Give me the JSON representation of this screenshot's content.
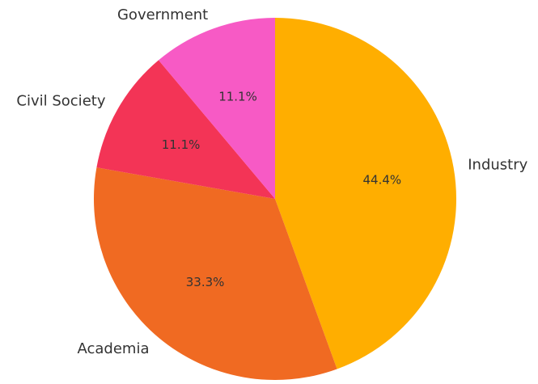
{
  "chart_data": {
    "type": "pie",
    "title": "",
    "categories": [
      "Industry",
      "Academia",
      "Civil Society",
      "Government"
    ],
    "values": [
      44.4,
      33.3,
      11.1,
      11.1
    ],
    "percent_labels": [
      "44.4%",
      "33.3%",
      "11.1%",
      "11.1%"
    ],
    "colors": [
      "#FFAE00",
      "#F06A22",
      "#F33456",
      "#F75AC5"
    ],
    "start_angle": "12 o'clock",
    "direction": "clockwise",
    "legend": "none"
  }
}
